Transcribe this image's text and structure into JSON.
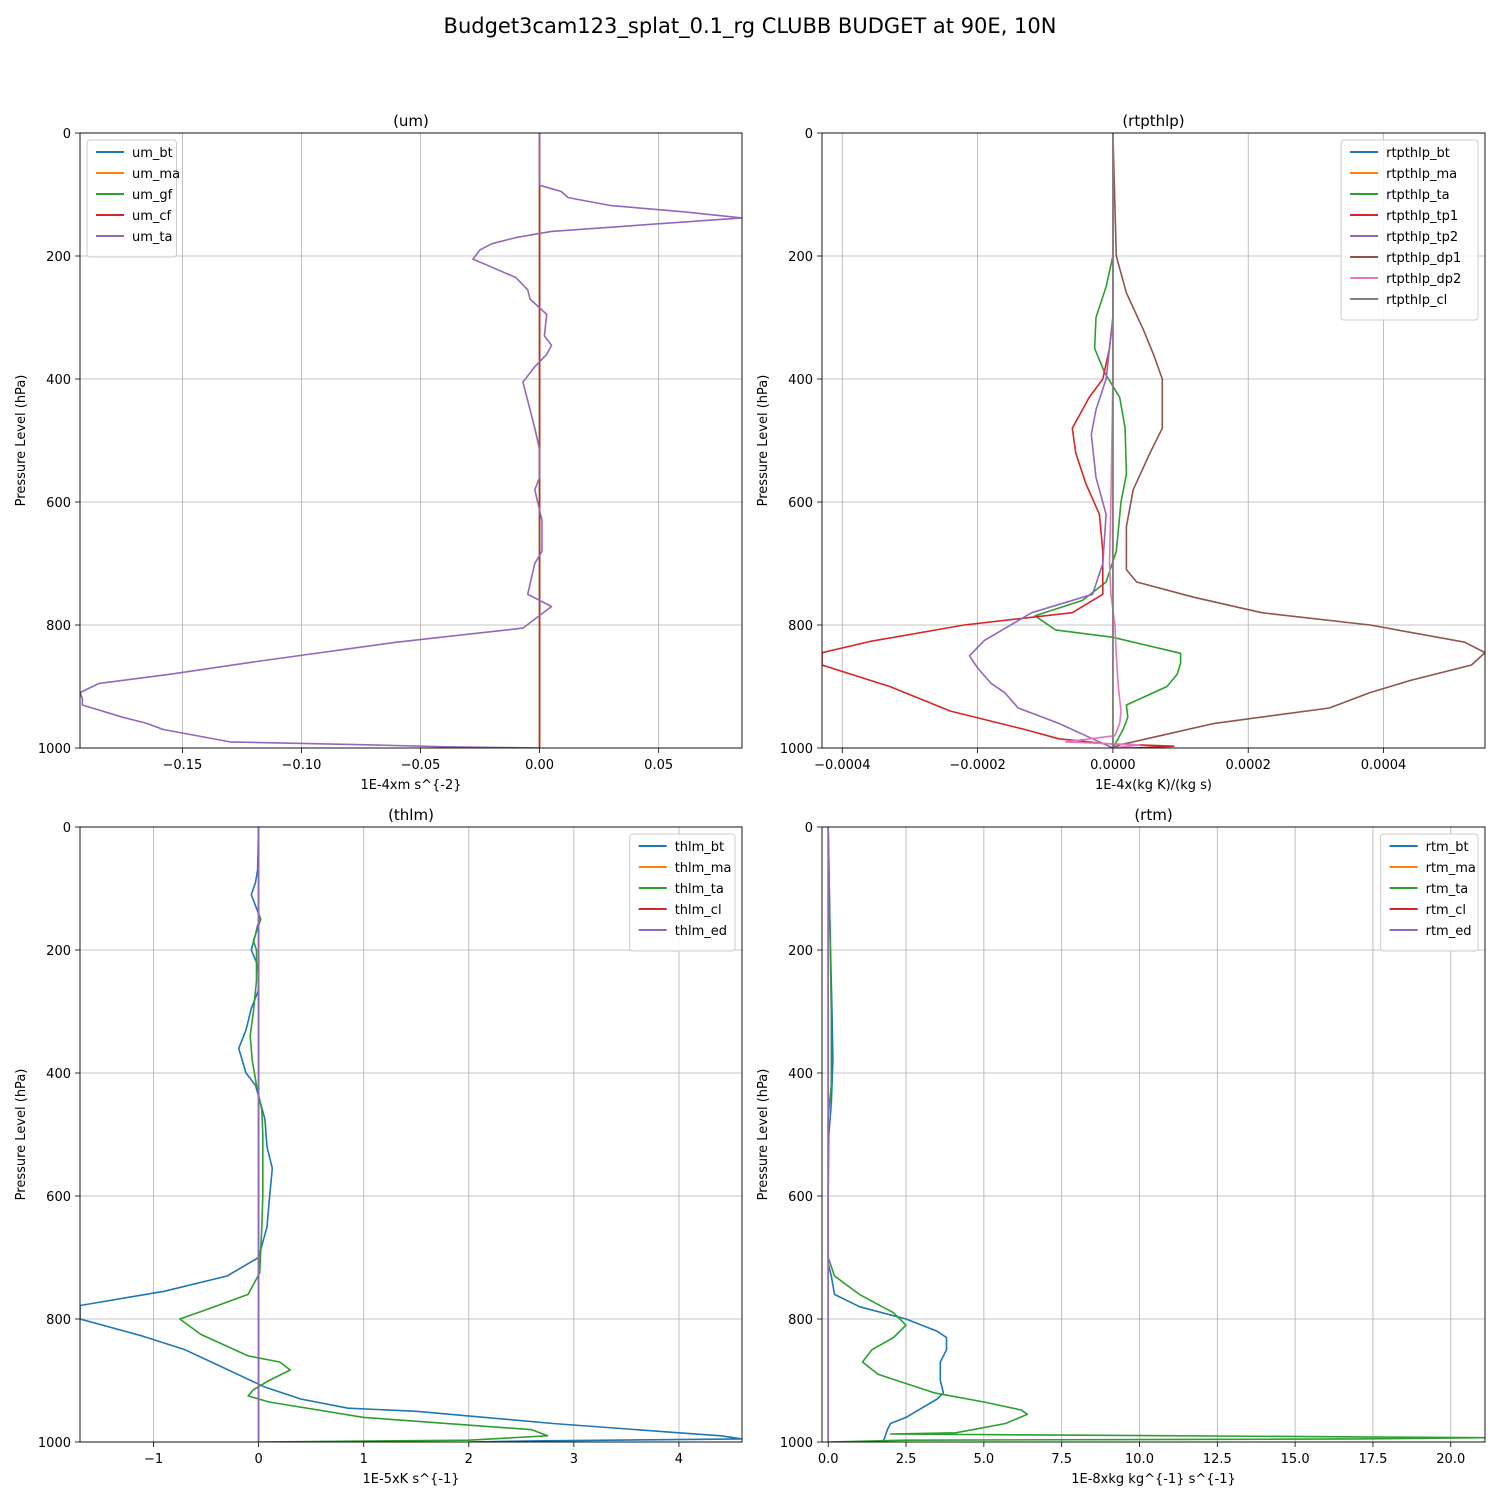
{
  "figure": {
    "title": "Budget3cam123_splat_0.1_rg CLUBB BUDGET at 90E, 10N"
  },
  "colors": {
    "grid": "#b0b0b0",
    "c0": "#1f77b4",
    "c1": "#ff7f0e",
    "c2": "#2ca02c",
    "c3": "#d62728",
    "c4": "#9467bd",
    "c5": "#8c564b",
    "c6": "#e377c2",
    "c7": "#7f7f7f"
  },
  "chart_data": [
    {
      "type": "line",
      "title": "(um)",
      "xlabel": "1E-4xm s^{-2}",
      "ylabel": "Pressure Level (hPa)",
      "xlim": [
        -0.193,
        0.085
      ],
      "ylim": [
        1000,
        0
      ],
      "xticks": [
        -0.15,
        -0.1,
        -0.05,
        0.0,
        0.05
      ],
      "xtick_labels": [
        "−0.15",
        "−0.10",
        "−0.05",
        "0.00",
        "0.05"
      ],
      "yticks": [
        0,
        200,
        400,
        600,
        800,
        1000
      ],
      "ytick_labels": [
        "0",
        "200",
        "400",
        "600",
        "800",
        "1000"
      ],
      "grid": true,
      "legend": "upper-left",
      "series": [
        {
          "name": "um_bt",
          "color": "#1f77b4",
          "x": [
            0,
            0,
            0
          ],
          "y": [
            0,
            500,
            1000
          ]
        },
        {
          "name": "um_ma",
          "color": "#ff7f0e",
          "x": [
            0,
            0,
            0
          ],
          "y": [
            0,
            500,
            1000
          ]
        },
        {
          "name": "um_gf",
          "color": "#2ca02c",
          "x": [
            0,
            0,
            0
          ],
          "y": [
            0,
            500,
            1000
          ]
        },
        {
          "name": "um_cf",
          "color": "#d62728",
          "x": [
            0,
            0,
            0
          ],
          "y": [
            0,
            500,
            1000
          ]
        },
        {
          "name": "um_ta",
          "color": "#9467bd",
          "x": [
            0,
            0,
            0.009,
            0.012,
            0.03,
            0.06,
            0.085,
            0.005,
            -0.01,
            -0.02,
            -0.025,
            -0.028,
            -0.022,
            -0.01,
            -0.005,
            -0.004,
            0.003,
            0.002,
            0.005,
            0.003,
            -0.002,
            -0.007,
            -0.006,
            -0.002,
            0,
            0,
            -0.002,
            0.001,
            0.001,
            -0.002,
            -0.005,
            0.005,
            -0.007,
            -0.06,
            -0.12,
            -0.155,
            -0.185,
            -0.193,
            -0.192,
            -0.192,
            -0.175,
            -0.165,
            -0.158,
            -0.13,
            -0.07,
            -0.04,
            0
          ],
          "y": [
            0,
            85,
            95,
            105,
            118,
            128,
            138,
            160,
            170,
            180,
            190,
            205,
            215,
            235,
            255,
            270,
            295,
            330,
            345,
            360,
            380,
            405,
            420,
            480,
            515,
            560,
            580,
            630,
            680,
            700,
            750,
            770,
            805,
            828,
            860,
            880,
            895,
            910,
            920,
            930,
            950,
            960,
            970,
            990,
            995,
            998,
            1000
          ]
        }
      ]
    },
    {
      "type": "line",
      "title": "(rtpthlp)",
      "xlabel": "1E-4x(kg K)/(kg s)",
      "ylabel": "Pressure Level (hPa)",
      "xlim": [
        -0.00043,
        0.00055
      ],
      "ylim": [
        1000,
        0
      ],
      "xticks": [
        -0.0004,
        -0.0002,
        0.0,
        0.0002,
        0.0004
      ],
      "xtick_labels": [
        "−0.0004",
        "−0.0002",
        "0.0000",
        "0.0002",
        "0.0004"
      ],
      "yticks": [
        0,
        200,
        400,
        600,
        800,
        1000
      ],
      "ytick_labels": [
        "0",
        "200",
        "400",
        "600",
        "800",
        "1000"
      ],
      "grid": true,
      "legend": "upper-right",
      "series": [
        {
          "name": "rtpthlp_bt",
          "color": "#1f77b4",
          "x": [
            0,
            0,
            0
          ],
          "y": [
            0,
            500,
            1000
          ]
        },
        {
          "name": "rtpthlp_ma",
          "color": "#ff7f0e",
          "x": [
            0,
            0,
            0,
            0,
            0
          ],
          "y": [
            0,
            600,
            850,
            960,
            1000
          ]
        },
        {
          "name": "rtpthlp_ta",
          "color": "#2ca02c",
          "x": [
            0,
            0,
            0,
            -1e-05,
            -2.5e-05,
            -2.7e-05,
            -1.2e-05,
            1e-05,
            1.8e-05,
            2e-05,
            1.2e-05,
            5e-06,
            -1e-05,
            -4.5e-05,
            -0.000115,
            -8.5e-05,
            0,
            0.0001,
            0.0001,
            9.5e-05,
            8e-05,
            2e-05,
            2.2e-05,
            1.5e-05,
            5e-06,
            0
          ],
          "y": [
            0,
            120,
            200,
            250,
            300,
            350,
            390,
            430,
            480,
            555,
            600,
            680,
            730,
            760,
            785,
            808,
            820,
            846,
            862,
            880,
            900,
            930,
            950,
            970,
            990,
            1000
          ]
        },
        {
          "name": "rtpthlp_tp1",
          "color": "#d62728",
          "x": [
            0,
            0,
            0,
            -5e-06,
            -1.5e-05,
            -3.5e-05,
            -6e-05,
            -5.5e-05,
            -4e-05,
            -2e-05,
            -1.5e-05,
            -1.5e-05,
            -6e-05,
            -0.00022,
            -0.00036,
            -0.00043,
            -0.00043,
            -0.00033,
            -0.00024,
            -0.00013,
            -8e-05,
            -1e-05,
            9e-05,
            3e-05,
            0
          ],
          "y": [
            0,
            200,
            300,
            350,
            400,
            430,
            480,
            520,
            570,
            620,
            680,
            750,
            780,
            800,
            827,
            845,
            865,
            900,
            940,
            970,
            985,
            993,
            997,
            1000,
            1000
          ]
        },
        {
          "name": "rtpthlp_tp2",
          "color": "#9467bd",
          "x": [
            0,
            0,
            0,
            -5e-06,
            -1e-05,
            -2.5e-05,
            -3.2e-05,
            -2.5e-05,
            -1e-05,
            -1.5e-05,
            -3e-05,
            -0.00012,
            -0.00019,
            -0.000212,
            -0.0002,
            -0.00018,
            -0.00016,
            -0.00014,
            -8e-05,
            -3e-05,
            0
          ],
          "y": [
            0,
            200,
            300,
            350,
            400,
            450,
            490,
            560,
            620,
            700,
            750,
            780,
            825,
            850,
            870,
            895,
            910,
            935,
            960,
            985,
            1000
          ]
        },
        {
          "name": "rtpthlp_dp1",
          "color": "#8c564b",
          "x": [
            0,
            5e-06,
            2e-05,
            4.5e-05,
            6e-05,
            7.3e-05,
            7.3e-05,
            5.5e-05,
            3e-05,
            2e-05,
            2e-05,
            3.5e-05,
            0.00012,
            0.00022,
            0.00038,
            0.00052,
            0.00055,
            0.00053,
            0.00044,
            0.00038,
            0.00032,
            0.00015,
            7e-05,
            1e-05,
            0
          ],
          "y": [
            0,
            200,
            260,
            320,
            360,
            400,
            480,
            520,
            580,
            640,
            710,
            730,
            755,
            780,
            800,
            828,
            845,
            865,
            890,
            910,
            935,
            960,
            980,
            995,
            1000
          ]
        },
        {
          "name": "rtpthlp_dp2",
          "color": "#e377c2",
          "x": [
            0,
            0,
            -3e-06,
            -5e-06,
            -3e-06,
            3e-06,
            5e-06,
            8e-06,
            1.2e-05,
            1e-05,
            3e-06,
            -7e-05,
            4e-05,
            0
          ],
          "y": [
            0,
            400,
            600,
            700,
            750,
            800,
            850,
            900,
            940,
            960,
            980,
            990,
            995,
            1000
          ]
        },
        {
          "name": "rtpthlp_cl",
          "color": "#7f7f7f",
          "x": [
            0,
            0,
            0
          ],
          "y": [
            0,
            500,
            1000
          ]
        }
      ]
    },
    {
      "type": "line",
      "title": "(thlm)",
      "xlabel": "1E-5xK s^{-1}",
      "ylabel": "Pressure Level (hPa)",
      "xlim": [
        -1.7,
        4.6
      ],
      "ylim": [
        1000,
        0
      ],
      "xticks": [
        -1,
        0,
        1,
        2,
        3,
        4
      ],
      "xtick_labels": [
        "−1",
        "0",
        "1",
        "2",
        "3",
        "4"
      ],
      "yticks": [
        0,
        200,
        400,
        600,
        800,
        1000
      ],
      "ytick_labels": [
        "0",
        "200",
        "400",
        "600",
        "800",
        "1000"
      ],
      "grid": true,
      "legend": "upper-right",
      "series": [
        {
          "name": "thlm_bt",
          "color": "#1f77b4",
          "x": [
            0,
            -0.01,
            -0.03,
            -0.07,
            0.02,
            -0.01,
            -0.03,
            -0.07,
            -0.02,
            0,
            0,
            -0.07,
            -0.12,
            -0.19,
            -0.12,
            -0.03,
            0.02,
            0.06,
            0.08,
            0.13,
            0.1,
            0.08,
            0,
            -0.3,
            -0.9,
            -1.7,
            -1.7,
            -1.1,
            -0.7,
            -0.45,
            -0.2,
            0.05,
            0.4,
            0.85,
            1.5,
            2.8,
            4.0,
            4.4,
            4.6,
            2.7,
            2.0
          ],
          "y": [
            0,
            70,
            90,
            110,
            150,
            160,
            175,
            200,
            220,
            240,
            265,
            295,
            330,
            360,
            400,
            420,
            450,
            475,
            520,
            555,
            610,
            650,
            700,
            730,
            755,
            778,
            800,
            828,
            850,
            870,
            890,
            910,
            930,
            945,
            950,
            970,
            985,
            990,
            995,
            998,
            1000
          ]
        },
        {
          "name": "thlm_ma",
          "color": "#ff7f0e",
          "x": [
            0,
            0,
            0
          ],
          "y": [
            0,
            500,
            1000
          ]
        },
        {
          "name": "thlm_ta",
          "color": "#2ca02c",
          "x": [
            0,
            0,
            0,
            0.02,
            -0.03,
            -0.05,
            -0.02,
            -0.02,
            -0.05,
            -0.08,
            -0.06,
            -0.02,
            0.03,
            0.04,
            0.04,
            0.04,
            0.03,
            0.01,
            -0.1,
            -0.5,
            -0.75,
            -0.55,
            -0.1,
            0.2,
            0.3,
            0.1,
            -0.05,
            -0.1,
            0.1,
            1.0,
            2.6,
            2.75,
            2.0,
            0
          ],
          "y": [
            0,
            100,
            140,
            150,
            175,
            185,
            200,
            250,
            300,
            340,
            380,
            420,
            460,
            500,
            560,
            600,
            650,
            725,
            760,
            785,
            800,
            825,
            860,
            870,
            883,
            900,
            915,
            925,
            935,
            960,
            980,
            990,
            997,
            1000
          ]
        },
        {
          "name": "thlm_cl",
          "color": "#d62728",
          "x": [
            0,
            0,
            0
          ],
          "y": [
            0,
            500,
            1000
          ]
        },
        {
          "name": "thlm_ed",
          "color": "#9467bd",
          "x": [
            0,
            0,
            0
          ],
          "y": [
            0,
            500,
            1000
          ]
        }
      ]
    },
    {
      "type": "line",
      "title": "(rtm)",
      "xlabel": "1E-8xkg kg^{-1} s^{-1}",
      "ylabel": "Pressure Level (hPa)",
      "xlim": [
        -0.2,
        21.1
      ],
      "ylim": [
        1000,
        0
      ],
      "xticks": [
        0,
        2.5,
        5,
        7.5,
        10,
        12.5,
        15,
        17.5,
        20
      ],
      "xtick_labels": [
        "0.0",
        "2.5",
        "5.0",
        "7.5",
        "10.0",
        "12.5",
        "15.0",
        "17.5",
        "20.0"
      ],
      "yticks": [
        0,
        200,
        400,
        600,
        800,
        1000
      ],
      "ytick_labels": [
        "0",
        "200",
        "400",
        "600",
        "800",
        "1000"
      ],
      "grid": true,
      "legend": "upper-right",
      "series": [
        {
          "name": "rtm_bt",
          "color": "#1f77b4",
          "x": [
            0,
            0.05,
            0.12,
            0.15,
            0.1,
            0.02,
            0,
            0,
            0,
            0.1,
            0.2,
            1.0,
            2.5,
            3.5,
            3.8,
            3.8,
            3.6,
            3.6,
            3.7,
            3.5,
            3.0,
            2.5,
            2.0,
            1.9,
            1.8,
            1.75
          ],
          "y": [
            0,
            150,
            300,
            380,
            450,
            500,
            600,
            700,
            710,
            730,
            760,
            780,
            800,
            820,
            830,
            850,
            870,
            900,
            920,
            930,
            945,
            960,
            970,
            980,
            995,
            1000
          ]
        },
        {
          "name": "rtm_ma",
          "color": "#ff7f0e",
          "x": [
            0,
            0,
            0
          ],
          "y": [
            0,
            500,
            1000
          ]
        },
        {
          "name": "rtm_ta",
          "color": "#2ca02c",
          "x": [
            0,
            0.05,
            0.1,
            0.1,
            0,
            0,
            0.2,
            1.0,
            2.1,
            2.5,
            2.1,
            1.4,
            1.1,
            1.6,
            3.4,
            5.0,
            6.2,
            6.4,
            5.7,
            4.1,
            2.0,
            21.1,
            17.0,
            2.5,
            0
          ],
          "y": [
            0,
            150,
            300,
            420,
            470,
            700,
            730,
            760,
            790,
            810,
            830,
            850,
            870,
            890,
            920,
            935,
            948,
            955,
            970,
            985,
            987,
            993,
            995,
            997,
            1000
          ]
        },
        {
          "name": "rtm_cl",
          "color": "#d62728",
          "x": [
            0,
            0,
            0
          ],
          "y": [
            0,
            500,
            1000
          ]
        },
        {
          "name": "rtm_ed",
          "color": "#9467bd",
          "x": [
            0,
            0,
            0
          ],
          "y": [
            0,
            500,
            1000
          ]
        }
      ]
    }
  ]
}
